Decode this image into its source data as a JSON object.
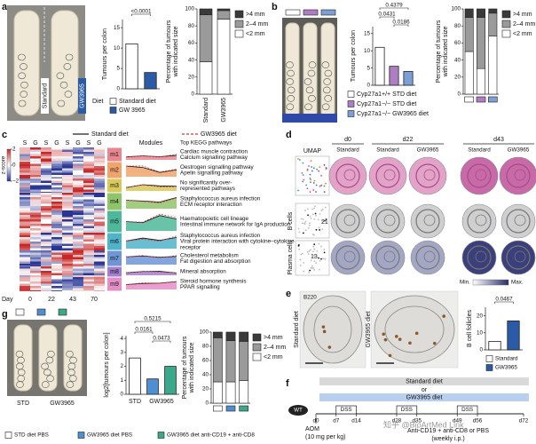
{
  "a": {
    "label": "a",
    "photo_labels": [
      "Standard",
      "GW3965"
    ],
    "tumours": {
      "type": "bar",
      "ylabel": "Tumours per colon",
      "values": [
        11,
        4
      ],
      "colors": [
        "#ffffff",
        "#2b5aa6"
      ],
      "ylim": [
        0,
        17
      ],
      "yticks": [
        0,
        5,
        10,
        15
      ],
      "pvalues": [
        "<0.0001"
      ]
    },
    "legend": {
      "title": "Diet",
      "items": [
        {
          "name": "Standard diet",
          "color": "#ffffff"
        },
        {
          "name": "GW 3965",
          "color": "#2b5aa6"
        }
      ]
    },
    "sizes": {
      "type": "stacked_bar",
      "ylabel": [
        "Percentage of tumours",
        "with indicated size"
      ],
      "categories": [
        "Standard",
        "GW3965"
      ],
      "ylim": [
        0,
        100
      ],
      "yticks": [
        0,
        20,
        40,
        60,
        80,
        100
      ],
      "series": [
        {
          "name": "<2 mm",
          "color": "#ffffff",
          "values": [
            38,
            88
          ]
        },
        {
          "name": "2–4 mm",
          "color": "#9a9a9a",
          "values": [
            55,
            10
          ]
        },
        {
          "name": ">4 mm",
          "color": "#3a3a3a",
          "values": [
            7,
            2
          ]
        }
      ]
    }
  },
  "b": {
    "label": "b",
    "photo_colors": [
      "#ffffff",
      "#b07cc6",
      "#7c9fd8"
    ],
    "tumours": {
      "type": "bar",
      "ylabel": "Tumours per colon",
      "values": [
        11,
        5.5,
        4
      ],
      "colors": [
        "#ffffff",
        "#b07cc6",
        "#7c9fd8"
      ],
      "ylim": [
        0,
        17
      ],
      "yticks": [
        0,
        5,
        10,
        15
      ],
      "pvalues": [
        "0.4379",
        "0.0431",
        "0.0186"
      ]
    },
    "legend": {
      "items": [
        {
          "name": "Cyp27a1+/+ STD diet",
          "color": "#ffffff"
        },
        {
          "name": "Cyp27a1−/− STD diet",
          "color": "#b07cc6"
        },
        {
          "name": "Cyp27a1−/− GW3965 diet",
          "color": "#7c9fd8"
        }
      ]
    },
    "sizes": {
      "type": "stacked_bar",
      "ylabel": [
        "Percentage of tumours",
        "with indicated size"
      ],
      "categories": [
        null,
        null,
        null
      ],
      "category_colors": [
        "#ffffff",
        "#b07cc6",
        "#7c9fd8"
      ],
      "ylim": [
        0,
        100
      ],
      "yticks": [
        0,
        20,
        40,
        60,
        80,
        100
      ],
      "series": [
        {
          "name": "<2 mm",
          "color": "#ffffff",
          "values": [
            50,
            30,
            68
          ]
        },
        {
          "name": "2–4 mm",
          "color": "#9a9a9a",
          "values": [
            40,
            60,
            27
          ]
        },
        {
          "name": ">4 mm",
          "color": "#3a3a3a",
          "values": [
            10,
            10,
            5
          ]
        }
      ]
    }
  },
  "c": {
    "label": "c",
    "legend": [
      "Standard diet",
      "GW3965 diet"
    ],
    "zscore": {
      "label": "z-score",
      "ticks": [
        2,
        0,
        {
          "value": -2,
          "label": "−2"
        }
      ]
    },
    "columns": [
      "S",
      "G",
      "S",
      "G",
      "S",
      "G",
      "S",
      "G"
    ],
    "day_label": "Day",
    "days": [
      "0",
      "22",
      "43",
      "70"
    ],
    "modules_label": "Modules",
    "pathways_title": "Top KEGG pathways",
    "modules": [
      {
        "name": "m1",
        "color": "#e8868f",
        "pathways": [
          "Cardiac muscle contraction",
          "Calcium signalling pathway"
        ]
      },
      {
        "name": "m2",
        "color": "#f0a36b",
        "pathways": [
          "Oestrogen signalling pathway",
          "Apelin signalling pathway"
        ]
      },
      {
        "name": "m3",
        "color": "#d8c95a",
        "pathways": [
          "No significantly over-",
          "represented pathways"
        ]
      },
      {
        "name": "m4",
        "color": "#8fc46a",
        "pathways": [
          "Staphylococcus aureus infection",
          "ECM receptor interaction"
        ]
      },
      {
        "name": "m5",
        "color": "#4fb89a",
        "pathways": [
          "Haematopoietic cell lineage",
          "Intestinal immune network for IgA production"
        ]
      },
      {
        "name": "m6",
        "color": "#4fb3c9",
        "pathways": [
          "Staphylococcus aureus infection",
          "Viral protein interaction with cytokine–cytokine",
          "receptor"
        ]
      },
      {
        "name": "m7",
        "color": "#6f95d6",
        "pathways": [
          "Cholesterol metabolism",
          "Fat digestion and absorption"
        ]
      },
      {
        "name": "m8",
        "color": "#a47fd0",
        "pathways": [
          "Mineral absorption"
        ]
      },
      {
        "name": "m9",
        "color": "#e58fc8",
        "pathways": [
          "Steroid hormone synthesis",
          "PPAR signalling"
        ]
      }
    ]
  },
  "d": {
    "label": "d",
    "umap": "UMAP",
    "timepoints": [
      "d0",
      "d22",
      "d43"
    ],
    "columns": [
      "Standard",
      "Standard",
      "GW3965",
      "Standard",
      "GW3965"
    ],
    "rows": [
      "B cells",
      "Plasma cells"
    ],
    "umap_counts": [
      "21",
      "13"
    ],
    "scale": [
      "Min.",
      "Max."
    ]
  },
  "e": {
    "label": "e",
    "stain": "B220",
    "image_labels": [
      "Standard diet",
      "GW3965 diet"
    ],
    "follicles": {
      "type": "bar",
      "ylabel": "B cell follicles",
      "values": [
        5,
        17
      ],
      "colors": [
        "#ffffff",
        "#2b5aa6"
      ],
      "ylim": [
        0,
        25
      ],
      "yticks": [
        0,
        10,
        20
      ],
      "pvalues": [
        "0.0467"
      ]
    },
    "legend": {
      "items": [
        {
          "name": "Standard",
          "color": "#ffffff"
        },
        {
          "name": "GW3965",
          "color": "#2b5aa6"
        }
      ]
    }
  },
  "g": {
    "label": "g",
    "photo_colors": [
      "#ffffff",
      "#4f8fd1",
      "#3aa889"
    ],
    "photo_labels": [
      "STD",
      "GW3965"
    ],
    "tumours": {
      "type": "bar",
      "ylabel": "log2[tumours per colon]",
      "group_labels": [
        "STD",
        "GW3965"
      ],
      "values": [
        2.6,
        1.1,
        2.0
      ],
      "colors": [
        "#ffffff",
        "#4f8fd1",
        "#3aa889"
      ],
      "ylim": [
        0,
        4.2
      ],
      "yticks": [
        0,
        1,
        2,
        3,
        4
      ],
      "pvalues": [
        "0.0161",
        "0.5215",
        "0.0473"
      ]
    },
    "sizes": {
      "type": "stacked_bar",
      "ylabel": [
        "Percentage of tumours",
        "with indicated size"
      ],
      "categories": [
        null,
        null,
        null
      ],
      "category_colors": [
        "#ffffff",
        "#4f8fd1",
        "#3aa889"
      ],
      "ylim": [
        0,
        100
      ],
      "yticks": [
        0,
        20,
        40,
        60,
        80,
        100
      ],
      "series": [
        {
          "name": "<2 mm",
          "color": "#ffffff",
          "values": [
            30,
            30,
            32
          ]
        },
        {
          "name": "2–4 mm",
          "color": "#9a9a9a",
          "values": [
            62,
            58,
            55
          ]
        },
        {
          "name": ">4 mm",
          "color": "#3a3a3a",
          "values": [
            8,
            12,
            13
          ]
        }
      ]
    },
    "legend": {
      "items": [
        {
          "name": "STD diet PBS",
          "color": "#ffffff"
        },
        {
          "name": "GW3965 diet PBS",
          "color": "#4f8fd1"
        },
        {
          "name": "GW3965 diet anti-CD19 + anti-CD8",
          "color": "#3aa889"
        }
      ]
    }
  },
  "f": {
    "label": "f",
    "diets": [
      "Standard diet",
      "or",
      "GW3965 diet"
    ],
    "mouse": "WT",
    "aom": [
      "AOM",
      "(10 mg per kg)"
    ],
    "days": [
      {
        "value": 0,
        "label": "d0"
      },
      {
        "value": 7,
        "label": "d7"
      },
      {
        "value": 14,
        "label": "d14"
      },
      {
        "value": 28,
        "label": "d28"
      },
      {
        "value": 35,
        "label": "d35"
      },
      {
        "value": 49,
        "label": "d49"
      },
      {
        "value": 56,
        "label": "d56"
      },
      {
        "value": 72,
        "label": "d72"
      }
    ],
    "dss": [
      "DSS",
      "DSS",
      "DSS"
    ],
    "treatment": [
      "Anti-CD19 + anti-CD8 or PBS",
      "(weekly i.p.)"
    ],
    "watermark": "知乎 @BioArtMed Link"
  }
}
